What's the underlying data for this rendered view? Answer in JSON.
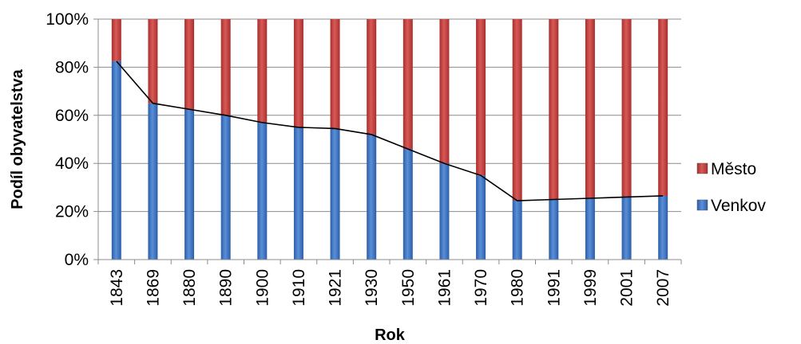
{
  "chart_data": {
    "type": "bar",
    "stacked": true,
    "normalized": true,
    "title": "",
    "xlabel": "Rok",
    "ylabel": "Podíl obyvatelstva",
    "ylim": [
      0,
      100
    ],
    "y_ticks": [
      "0%",
      "20%",
      "40%",
      "60%",
      "80%",
      "100%"
    ],
    "grid": true,
    "legend_position": "right",
    "categories": [
      "1843",
      "1869",
      "1880",
      "1890",
      "1900",
      "1910",
      "1921",
      "1930",
      "1950",
      "1961",
      "1970",
      "1980",
      "1991",
      "1999",
      "2001",
      "2007"
    ],
    "series": [
      {
        "name": "Venkov",
        "color": "#3d72c0",
        "values": [
          82.5,
          65,
          62.5,
          60,
          57,
          55,
          54.5,
          52,
          46,
          40,
          35,
          24.5,
          25,
          25.5,
          26,
          26.5
        ]
      },
      {
        "name": "Město",
        "color": "#c0393b",
        "values": [
          17.5,
          35,
          37.5,
          40,
          43,
          45,
          45.5,
          48,
          54,
          60,
          65,
          75.5,
          75,
          74.5,
          74,
          73.5
        ]
      }
    ],
    "overlay_line": {
      "series": "Venkov",
      "color": "#000000"
    }
  }
}
